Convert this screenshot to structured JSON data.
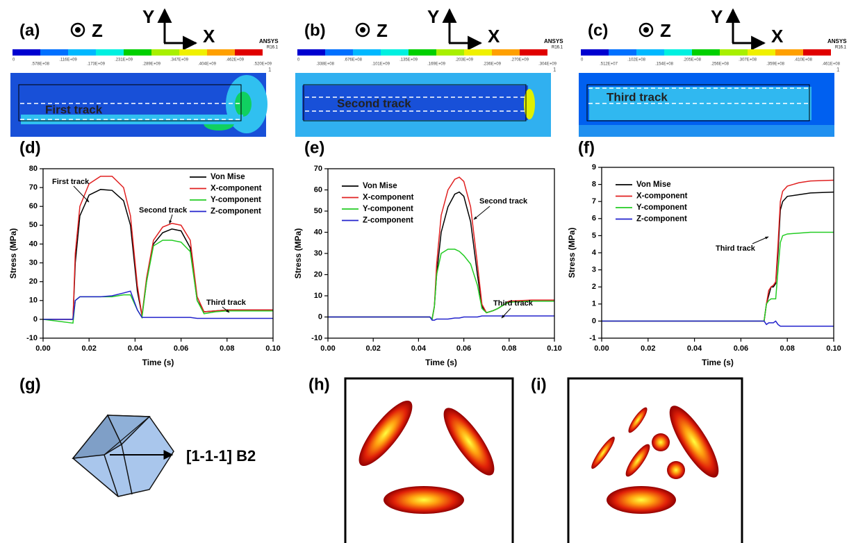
{
  "contour_panels": [
    {
      "label": "(a)",
      "axis_z": "Z",
      "axis_y": "Y",
      "axis_x": "X",
      "brand": "ANSYS",
      "version": "R16.1",
      "number": "1",
      "colorbar_ticks": [
        "0",
        ".578E+08",
        ".116E+09",
        ".173E+09",
        ".231E+09",
        ".289E+09",
        ".347E+09",
        ".404E+09",
        ".462E+09",
        ".520E+09"
      ],
      "track_label": "First track"
    },
    {
      "label": "(b)",
      "axis_z": "Z",
      "axis_y": "Y",
      "axis_x": "X",
      "brand": "ANSYS",
      "version": "R16.1",
      "number": "1",
      "colorbar_ticks": [
        "0",
        ".338E+08",
        ".676E+08",
        ".101E+09",
        ".135E+09",
        ".169E+09",
        ".203E+09",
        ".236E+09",
        ".270E+09",
        ".304E+09"
      ],
      "track_label": "Second track"
    },
    {
      "label": "(c)",
      "axis_z": "Z",
      "axis_y": "Y",
      "axis_x": "X",
      "brand": "ANSYS",
      "version": "R16.1",
      "number": "1",
      "colorbar_ticks": [
        "0",
        ".512E+07",
        ".102E+08",
        ".154E+08",
        ".205E+08",
        ".256E+08",
        ".307E+08",
        ".359E+08",
        ".410E+08",
        ".461E+08"
      ],
      "track_label": "Third track"
    }
  ],
  "chart_labels": [
    "(d)",
    "(e)",
    "(f)"
  ],
  "chart_data": [
    {
      "type": "line",
      "xlabel": "Time (s)",
      "ylabel": "Stress (MPa)",
      "legend": "upper right",
      "x": [
        0,
        0.013,
        0.014,
        0.016,
        0.02,
        0.025,
        0.03,
        0.035,
        0.038,
        0.041,
        0.043,
        0.045,
        0.048,
        0.052,
        0.056,
        0.06,
        0.064,
        0.067,
        0.07,
        0.075,
        0.08,
        0.09,
        0.1
      ],
      "series": [
        {
          "name": "Von Mise",
          "color": "#000000",
          "values": [
            0,
            0,
            30,
            55,
            66,
            69,
            68.5,
            63,
            50,
            15,
            2,
            20,
            40,
            46,
            48,
            47,
            38,
            10,
            4,
            4.5,
            5,
            5,
            5
          ]
        },
        {
          "name": "X-component",
          "color": "#e02020",
          "values": [
            0,
            0,
            35,
            60,
            72,
            76,
            76,
            70,
            55,
            18,
            2,
            22,
            42,
            49,
            51,
            50,
            42,
            12,
            4,
            4.5,
            5,
            5,
            5
          ]
        },
        {
          "name": "Y-component",
          "color": "#22cc22",
          "values": [
            0,
            -2,
            10,
            12,
            12,
            12,
            12,
            13,
            13,
            5,
            1,
            20,
            39,
            42,
            42,
            41,
            36,
            10,
            3,
            4,
            4.5,
            4.5,
            4.5
          ]
        },
        {
          "name": "Z-component",
          "color": "#2222cc",
          "values": [
            0,
            0,
            10,
            12,
            12,
            12,
            12.5,
            14,
            15,
            5,
            1,
            1,
            1,
            1,
            1,
            1,
            1,
            0.5,
            0.5,
            0.5,
            0.5,
            0.5,
            0.5
          ]
        }
      ],
      "xlim": [
        0,
        0.1
      ],
      "ylim": [
        -10,
        80
      ],
      "xticks": [
        {
          "value": 0,
          "label": "0.00"
        },
        {
          "value": 0.02,
          "label": "0.02"
        },
        {
          "value": 0.04,
          "label": "0.04"
        },
        {
          "value": 0.06,
          "label": "0.06"
        },
        {
          "value": 0.08,
          "label": "0.08"
        },
        {
          "value": 0.1,
          "label": "0.10"
        }
      ],
      "yticks": [
        -10,
        0,
        10,
        20,
        30,
        40,
        50,
        60,
        70,
        80
      ],
      "annotations": [
        "First track",
        "Second track",
        "Third track"
      ]
    },
    {
      "type": "line",
      "xlabel": "Time (s)",
      "ylabel": "Stress (MPa)",
      "legend": "upper left",
      "x": [
        0,
        0.045,
        0.046,
        0.047,
        0.048,
        0.05,
        0.053,
        0.056,
        0.058,
        0.06,
        0.063,
        0.066,
        0.068,
        0.07,
        0.073,
        0.075,
        0.078,
        0.08,
        0.09,
        0.1
      ],
      "series": [
        {
          "name": "Von Mise",
          "color": "#000000",
          "values": [
            0,
            0,
            -1,
            5,
            20,
            40,
            52,
            58,
            59,
            57,
            45,
            20,
            5,
            2,
            3,
            4,
            6,
            7,
            7.5,
            7.5
          ]
        },
        {
          "name": "X-component",
          "color": "#e02020",
          "values": [
            0,
            0,
            -1,
            5,
            25,
            48,
            60,
            65,
            66,
            64,
            52,
            25,
            6,
            2,
            3,
            4,
            6,
            7.5,
            8,
            8
          ]
        },
        {
          "name": "Y-component",
          "color": "#22cc22",
          "values": [
            0,
            0,
            -1,
            5,
            20,
            30,
            32,
            32,
            31,
            29,
            25,
            15,
            4,
            2,
            3,
            4,
            6,
            7,
            7.5,
            7.5
          ]
        },
        {
          "name": "Z-component",
          "color": "#2222cc",
          "values": [
            0,
            0,
            -1.5,
            -1.5,
            -1,
            -1,
            -1,
            -0.5,
            -0.5,
            0,
            0,
            0,
            0.5,
            0.5,
            0.5,
            0.5,
            0.5,
            0.5,
            0.5,
            0.5
          ]
        }
      ],
      "xlim": [
        0,
        0.1
      ],
      "ylim": [
        -10,
        70
      ],
      "xticks": [
        {
          "value": 0,
          "label": "0.00"
        },
        {
          "value": 0.02,
          "label": "0.02"
        },
        {
          "value": 0.04,
          "label": "0.04"
        },
        {
          "value": 0.06,
          "label": "0.06"
        },
        {
          "value": 0.08,
          "label": "0.08"
        },
        {
          "value": 0.1,
          "label": "0.10"
        }
      ],
      "yticks": [
        -10,
        0,
        10,
        20,
        30,
        40,
        50,
        60,
        70
      ],
      "annotations": [
        "Second track",
        "Third track"
      ]
    },
    {
      "type": "line",
      "xlabel": "Time (s)",
      "ylabel": "Stress (MPa)",
      "legend": "upper left",
      "x": [
        0,
        0.07,
        0.071,
        0.072,
        0.073,
        0.074,
        0.075,
        0.076,
        0.077,
        0.078,
        0.08,
        0.085,
        0.09,
        0.1
      ],
      "series": [
        {
          "name": "Von Mise",
          "color": "#000000",
          "values": [
            0,
            0,
            1,
            1.5,
            2,
            2,
            2.2,
            4,
            6.5,
            7,
            7.3,
            7.4,
            7.5,
            7.55
          ]
        },
        {
          "name": "X-component",
          "color": "#e02020",
          "values": [
            0,
            0,
            1,
            1.8,
            2,
            2.1,
            2.3,
            4.5,
            7,
            7.6,
            7.9,
            8.1,
            8.2,
            8.25
          ]
        },
        {
          "name": "Y-component",
          "color": "#22cc22",
          "values": [
            0,
            0,
            1,
            1.2,
            1.3,
            1.3,
            1.3,
            3,
            4.6,
            5,
            5.1,
            5.15,
            5.2,
            5.2
          ]
        },
        {
          "name": "Z-component",
          "color": "#2222cc",
          "values": [
            0,
            0,
            -0.2,
            -0.1,
            -0.1,
            -0.1,
            0,
            -0.2,
            -0.3,
            -0.3,
            -0.3,
            -0.3,
            -0.3,
            -0.3
          ]
        }
      ],
      "xlim": [
        0,
        0.1
      ],
      "ylim": [
        -1,
        9
      ],
      "xticks": [
        {
          "value": 0,
          "label": "0.00"
        },
        {
          "value": 0.02,
          "label": "0.02"
        },
        {
          "value": 0.04,
          "label": "0.04"
        },
        {
          "value": 0.06,
          "label": "0.06"
        },
        {
          "value": 0.08,
          "label": "0.08"
        },
        {
          "value": 0.1,
          "label": "0.10"
        }
      ],
      "yticks": [
        -1,
        0,
        1,
        2,
        3,
        4,
        5,
        6,
        7,
        8,
        9
      ],
      "annotations": [
        "Third track"
      ]
    }
  ],
  "bottom_panels": [
    {
      "label": "(g)",
      "caption": "[1-1-1] B2"
    },
    {
      "label": "(h)"
    },
    {
      "label": "(i)"
    }
  ]
}
